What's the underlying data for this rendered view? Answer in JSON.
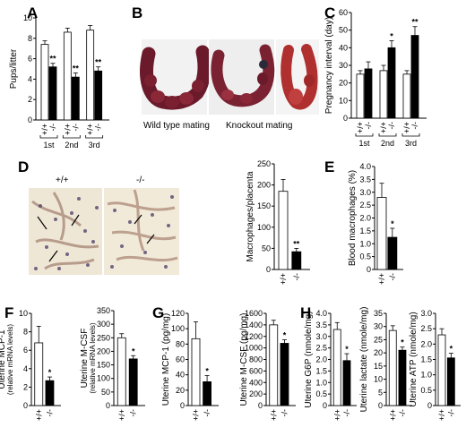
{
  "panels": {
    "A": "A",
    "B": "B",
    "C": "C",
    "D": "D",
    "E": "E",
    "F": "F",
    "G": "G",
    "H": "H"
  },
  "photos": {
    "wild_type_label": "Wild type mating",
    "knockout_label": "Knockout mating",
    "d_left_label": "+/+",
    "d_right_label": "-/-"
  },
  "colors": {
    "wt": "#ffffff",
    "ko": "#000000"
  },
  "chart_data": [
    {
      "id": "A",
      "type": "bar",
      "ylabel": "Pups/litter",
      "ylim": [
        0,
        10
      ],
      "yticks": [
        "0",
        "2",
        "4",
        "6",
        "8",
        "10"
      ],
      "categories": [
        "1st",
        "2nd",
        "3rd"
      ],
      "genotype_labels": [
        "+/+",
        "-/-"
      ],
      "series": [
        {
          "name": "+/+",
          "values": [
            7.4,
            8.6,
            8.8
          ],
          "errors": [
            0.35,
            0.4,
            0.45
          ]
        },
        {
          "name": "-/-",
          "values": [
            5.2,
            4.2,
            4.8
          ],
          "errors": [
            0.35,
            0.4,
            0.4
          ]
        }
      ],
      "annotations": [
        "**",
        "**",
        "**"
      ]
    },
    {
      "id": "C",
      "type": "bar",
      "ylabel": "Pregnancy interval (day)",
      "ylim": [
        0,
        60
      ],
      "yticks": [
        "0",
        "10",
        "20",
        "30",
        "40",
        "50",
        "60"
      ],
      "categories": [
        "1st",
        "2nd",
        "3rd"
      ],
      "genotype_labels": [
        "+/+",
        "-/-"
      ],
      "series": [
        {
          "name": "+/+",
          "values": [
            25,
            27,
            25
          ],
          "errors": [
            2,
            3,
            2
          ]
        },
        {
          "name": "-/-",
          "values": [
            28,
            40,
            47
          ],
          "errors": [
            4,
            4,
            5
          ]
        }
      ],
      "annotations": [
        "",
        "*",
        "**"
      ]
    },
    {
      "id": "D",
      "type": "bar",
      "ylabel": "Macrophages/placenta",
      "ylim": [
        0,
        250
      ],
      "yticks": [
        "0",
        "50",
        "100",
        "150",
        "200",
        "250"
      ],
      "categories": [
        "+/+",
        "-/-"
      ],
      "values": [
        185,
        42
      ],
      "errors": [
        28,
        8
      ],
      "annotations": [
        "",
        "**"
      ]
    },
    {
      "id": "E",
      "type": "bar",
      "ylabel": "Blood macrophages (%)",
      "ylim": [
        0,
        4
      ],
      "yticks": [
        "0",
        "0.5",
        "1.0",
        "1.5",
        "2.0",
        "2.5",
        "3.0",
        "3.5",
        "4.0"
      ],
      "categories": [
        "+/+",
        "-/-"
      ],
      "values": [
        2.8,
        1.25
      ],
      "errors": [
        0.55,
        0.35
      ],
      "annotations": [
        "",
        "*"
      ]
    },
    {
      "id": "F1",
      "type": "bar",
      "ylabel": "Uterine MCP-1",
      "ylabel2": "(relative mRNA levels)",
      "ylim": [
        0,
        10
      ],
      "yticks": [
        "0",
        "2",
        "4",
        "6",
        "8",
        "10"
      ],
      "categories": [
        "+/+",
        "-/-"
      ],
      "values": [
        6.8,
        2.7
      ],
      "errors": [
        1.8,
        0.4
      ],
      "annotations": [
        "",
        "*"
      ]
    },
    {
      "id": "F2",
      "type": "bar",
      "ylabel": "Uterine M-CSF",
      "ylabel2": "(relative mRNA levels)",
      "ylim": [
        0,
        350
      ],
      "yticks": [
        "0",
        "50",
        "100",
        "150",
        "200",
        "250",
        "300",
        "350"
      ],
      "categories": [
        "+/+",
        "-/-"
      ],
      "values": [
        250,
        172
      ],
      "errors": [
        15,
        12
      ],
      "annotations": [
        "",
        "*"
      ]
    },
    {
      "id": "G1",
      "type": "bar",
      "ylabel": "Uterine MCP-1 (pg/mg)",
      "ylim": [
        0,
        120
      ],
      "yticks": [
        "0",
        "20",
        "40",
        "60",
        "80",
        "100",
        "120"
      ],
      "categories": [
        "+/+",
        "-/-"
      ],
      "values": [
        87,
        31
      ],
      "errors": [
        22,
        8
      ],
      "annotations": [
        "",
        "*"
      ]
    },
    {
      "id": "G2",
      "type": "bar",
      "ylabel": "Uterine M-CSF (pg/mg)",
      "ylim": [
        0,
        1600
      ],
      "yticks": [
        "0",
        "200",
        "400",
        "600",
        "800",
        "1000",
        "1200",
        "1400",
        "1600"
      ],
      "categories": [
        "+/+",
        "-/-"
      ],
      "values": [
        1400,
        1080
      ],
      "errors": [
        80,
        60
      ],
      "annotations": [
        "",
        "*"
      ]
    },
    {
      "id": "H1",
      "type": "bar",
      "ylabel": "Uterine G6P (nmole/mg)",
      "ylim": [
        0,
        4
      ],
      "yticks": [
        "0",
        "0.5",
        "1.0",
        "1.5",
        "2.0",
        "2.5",
        "3.0",
        "3.5",
        "4.0"
      ],
      "categories": [
        "+/+",
        "-/-"
      ],
      "values": [
        3.3,
        1.95
      ],
      "errors": [
        0.3,
        0.3
      ],
      "annotations": [
        "",
        "*"
      ]
    },
    {
      "id": "H2",
      "type": "bar",
      "ylabel": "Uterine lactate (nmole/mg)",
      "ylim": [
        0,
        35
      ],
      "yticks": [
        "0",
        "5",
        "10",
        "15",
        "20",
        "25",
        "30",
        "35"
      ],
      "categories": [
        "+/+",
        "-/-"
      ],
      "values": [
        28.5,
        21
      ],
      "errors": [
        1.8,
        1.2
      ],
      "annotations": [
        "",
        "*"
      ]
    },
    {
      "id": "H3",
      "type": "bar",
      "ylabel": "Uterine ATP (nmole/mg)",
      "ylim": [
        0,
        3
      ],
      "yticks": [
        "0",
        "0.5",
        "1.0",
        "1.5",
        "2.0",
        "2.5",
        "3.0"
      ],
      "categories": [
        "+/+",
        "-/-"
      ],
      "values": [
        2.3,
        1.55
      ],
      "errors": [
        0.2,
        0.15
      ],
      "annotations": [
        "",
        "*"
      ]
    }
  ]
}
